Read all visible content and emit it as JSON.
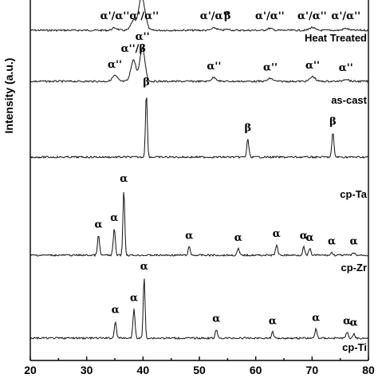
{
  "chart_data": {
    "type": "line",
    "ylabel": "Intensity (a.u.)",
    "xlim": [
      20,
      80
    ],
    "x_ticks": [
      "20",
      "30",
      "40",
      "50",
      "60",
      "70",
      "80"
    ],
    "series": [
      {
        "name": "Heat Treated",
        "peaks": [
          {
            "x": 35.0,
            "h": 0.05,
            "label": "α'/α''"
          },
          {
            "x": 38.3,
            "h": 0.2,
            "label": ""
          },
          {
            "x": 39.6,
            "h": 0.55,
            "label": ""
          },
          {
            "x": 40.2,
            "h": 0.3,
            "label": "α'/α''"
          },
          {
            "x": 52.7,
            "h": 0.05,
            "label": "α'/α''"
          },
          {
            "x": 55.0,
            "h": 0.02,
            "label": "β"
          },
          {
            "x": 62.5,
            "h": 0.04,
            "label": "α'/α''"
          },
          {
            "x": 70.0,
            "h": 0.06,
            "label": "α'/α''"
          },
          {
            "x": 76.0,
            "h": 0.04,
            "label": "α'/α''"
          }
        ]
      },
      {
        "name": "as-cast",
        "peaks": [
          {
            "x": 35.0,
            "h": 0.12,
            "label": "α''"
          },
          {
            "x": 38.3,
            "h": 0.45,
            "label": "α''/β"
          },
          {
            "x": 39.9,
            "h": 0.7,
            "label": "α''"
          },
          {
            "x": 52.6,
            "h": 0.08,
            "label": "α''"
          },
          {
            "x": 62.6,
            "h": 0.06,
            "label": "α''"
          },
          {
            "x": 70.1,
            "h": 0.1,
            "label": "α''"
          },
          {
            "x": 76.0,
            "h": 0.05,
            "label": "α''"
          }
        ]
      },
      {
        "name": "cp-Ta",
        "peaks": [
          {
            "x": 40.6,
            "h": 1.0,
            "label": "β"
          },
          {
            "x": 58.6,
            "h": 0.28,
            "label": "β"
          },
          {
            "x": 73.7,
            "h": 0.38,
            "label": "β"
          }
        ]
      },
      {
        "name": "cp-Zr",
        "peaks": [
          {
            "x": 32.1,
            "h": 0.3,
            "label": "α"
          },
          {
            "x": 34.9,
            "h": 0.4,
            "label": "α"
          },
          {
            "x": 36.6,
            "h": 1.0,
            "label": "α"
          },
          {
            "x": 48.2,
            "h": 0.13,
            "label": "α"
          },
          {
            "x": 56.9,
            "h": 0.1,
            "label": "α"
          },
          {
            "x": 63.7,
            "h": 0.16,
            "label": "α"
          },
          {
            "x": 68.5,
            "h": 0.13,
            "label": "α"
          },
          {
            "x": 69.6,
            "h": 0.1,
            "label": "α"
          },
          {
            "x": 73.5,
            "h": 0.04,
            "label": "α"
          },
          {
            "x": 77.4,
            "h": 0.04,
            "label": "α"
          }
        ]
      },
      {
        "name": "cp-Ti",
        "peaks": [
          {
            "x": 35.1,
            "h": 0.28,
            "label": "α"
          },
          {
            "x": 38.4,
            "h": 0.48,
            "label": "α"
          },
          {
            "x": 40.2,
            "h": 1.0,
            "label": "α"
          },
          {
            "x": 53.0,
            "h": 0.14,
            "label": "α"
          },
          {
            "x": 63.0,
            "h": 0.1,
            "label": "α"
          },
          {
            "x": 70.7,
            "h": 0.15,
            "label": "α"
          },
          {
            "x": 76.2,
            "h": 0.1,
            "label": "α"
          },
          {
            "x": 77.4,
            "h": 0.07,
            "label": "α"
          }
        ]
      }
    ]
  }
}
